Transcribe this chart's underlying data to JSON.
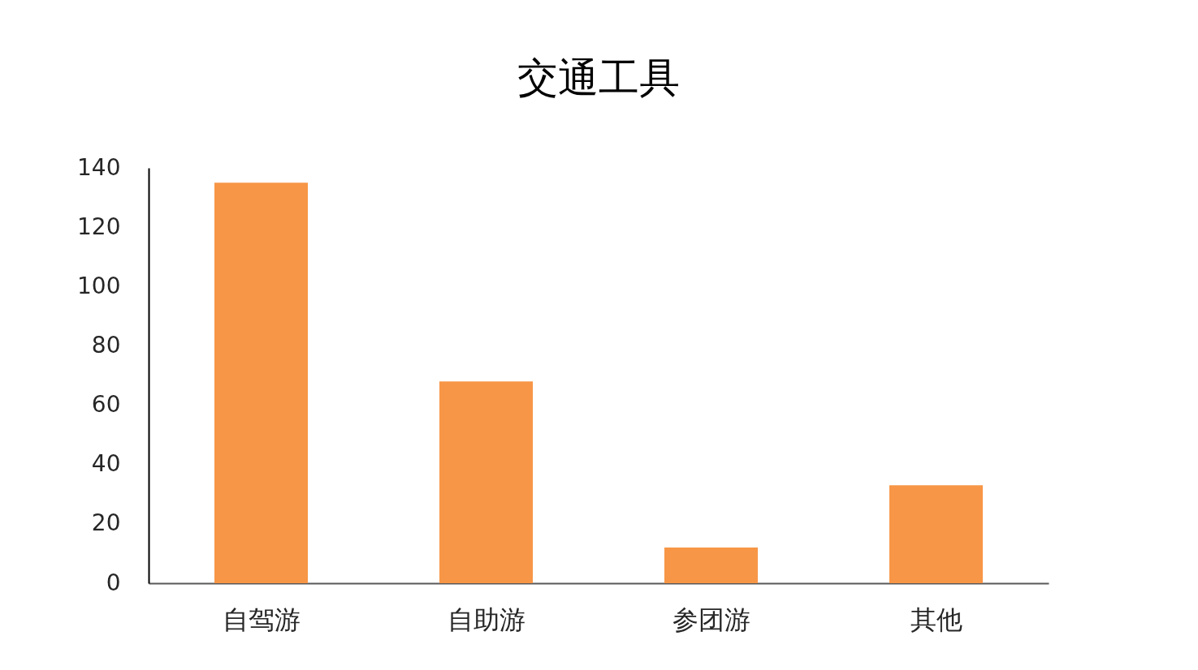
{
  "chart_data": {
    "type": "bar",
    "title": "交通工具",
    "categories": [
      "自驾游",
      "自助游",
      "参团游",
      "其他"
    ],
    "values": [
      135,
      68,
      12,
      33
    ],
    "color": "#f79646",
    "ylim": [
      0,
      140
    ],
    "yticks": [
      0,
      20,
      40,
      60,
      80,
      100,
      120,
      140
    ],
    "grid": false
  }
}
